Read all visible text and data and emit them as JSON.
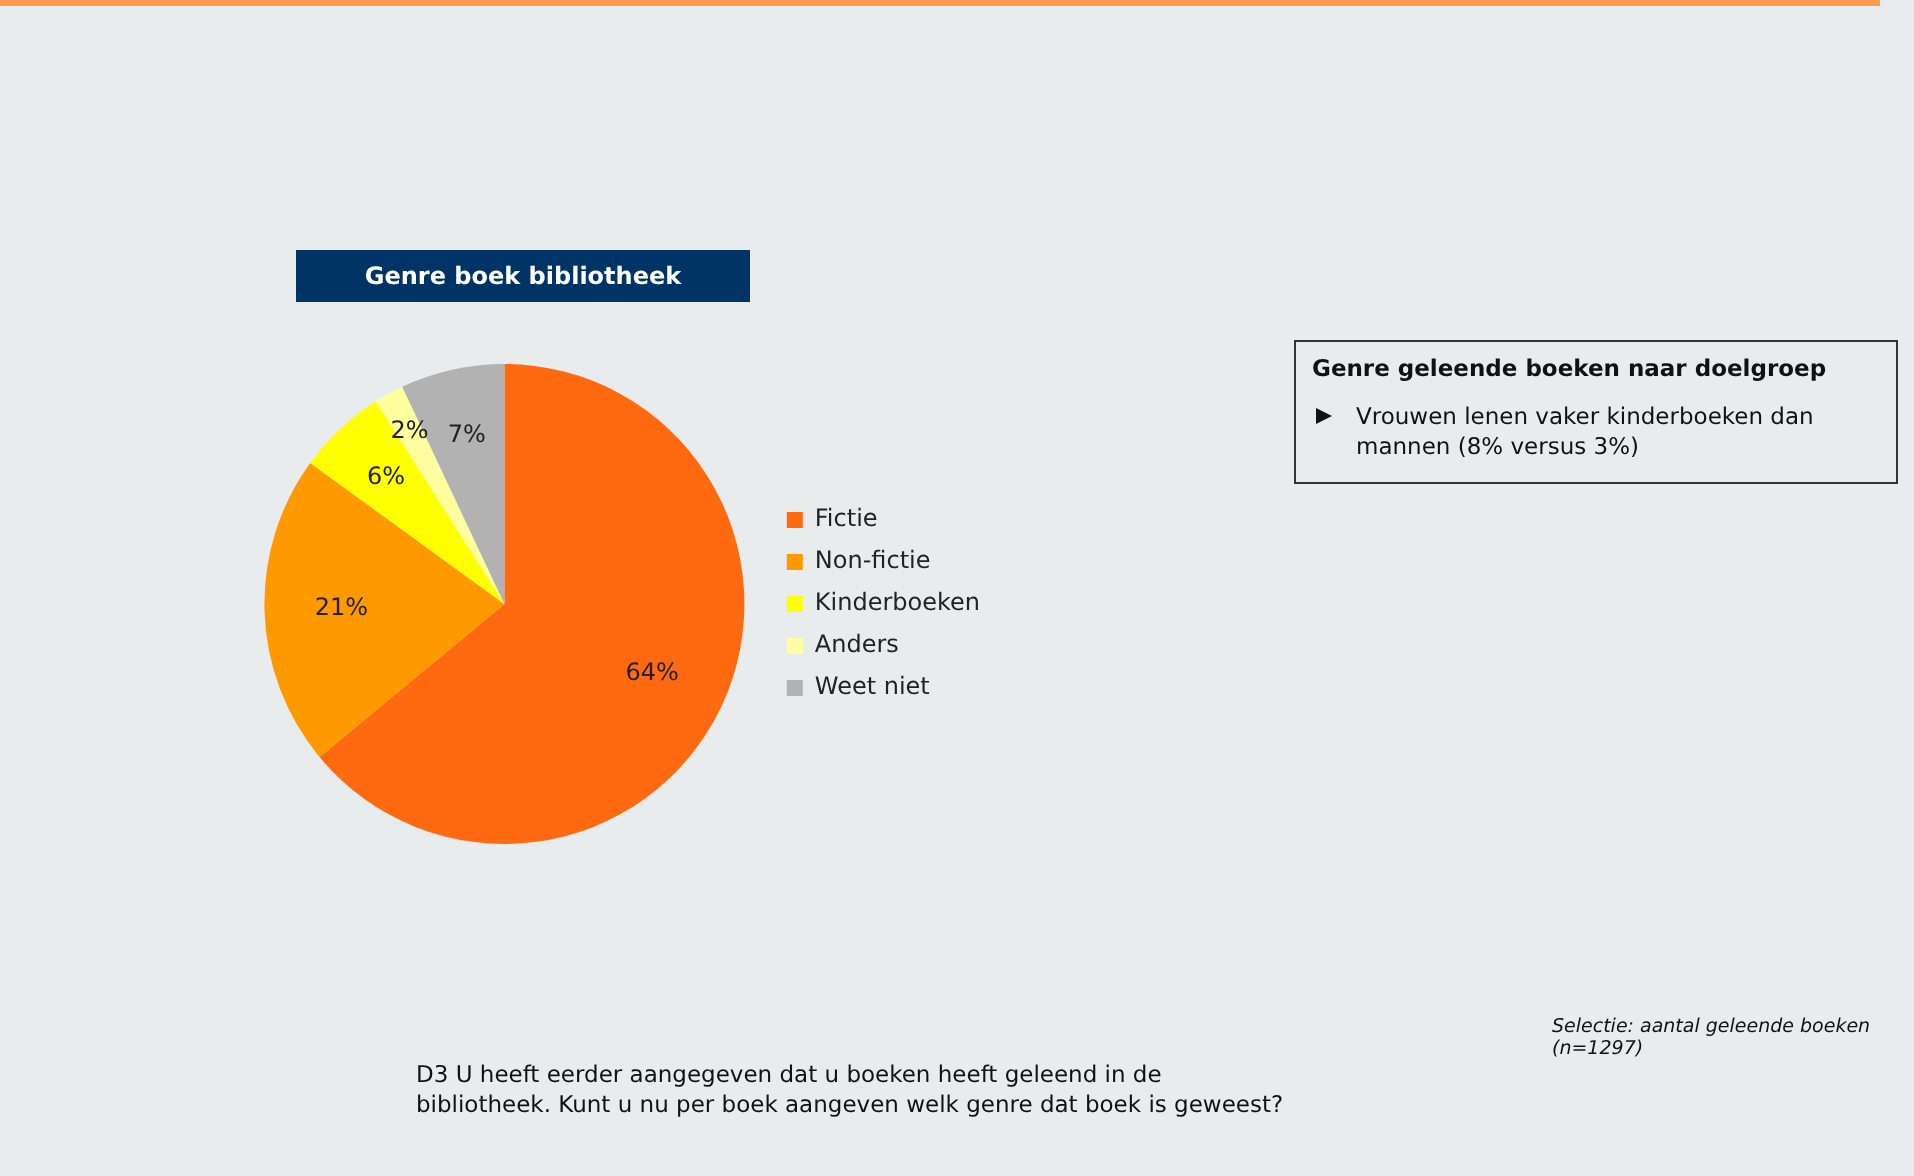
{
  "chart_data": {
    "type": "pie",
    "title": "Genre boek bibliotheek",
    "categories": [
      "Fictie",
      "Non-fictie",
      "Kinderboeken",
      "Anders",
      "Weet niet"
    ],
    "values": [
      64,
      21,
      6,
      2,
      7
    ],
    "value_labels": [
      "64%",
      "21%",
      "6%",
      "2%",
      "7%"
    ],
    "colors": [
      "#ff6a10",
      "#ff9900",
      "#ffff00",
      "#ffffa0",
      "#b2b2b2"
    ],
    "legend": "right",
    "annotations": [
      "Genre geleende boeken naar doelgroep",
      "Vrouwen lenen vaker kinderboeken dan mannen (8% versus 3%)",
      "D3 U heeft eerder aangegeven dat u boeken heeft geleend in de bibliotheek. Kunt u nu per boek aangeven welk genre dat boek is geweest?",
      "Selectie: aantal geleende boeken (n=1297)"
    ]
  }
}
